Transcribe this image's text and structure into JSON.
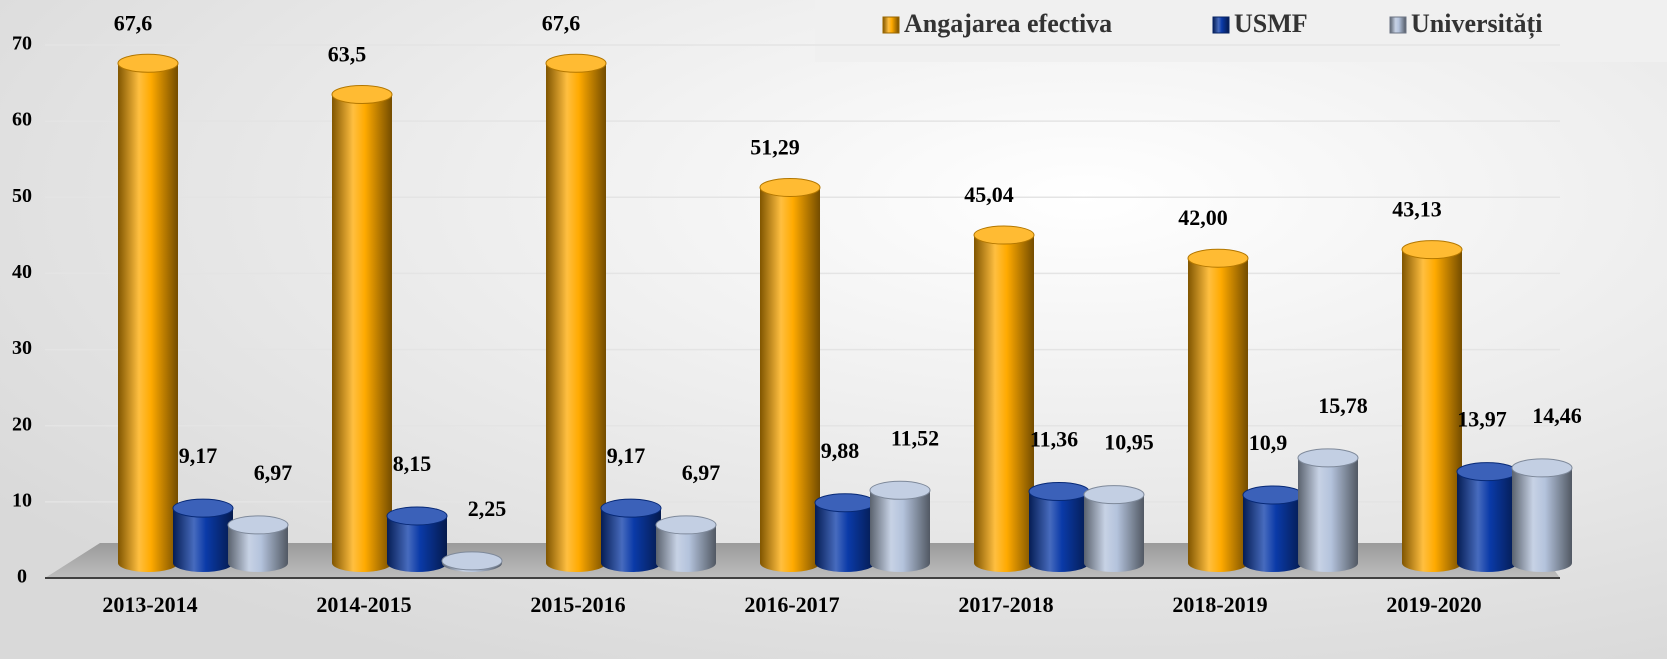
{
  "chart_data": {
    "type": "bar",
    "categories": [
      "2013-2014",
      "2014-2015",
      "2015-2016",
      "2016-2017",
      "2017-2018",
      "2018-2019",
      "2019-2020"
    ],
    "series": [
      {
        "name": "Angajarea efectiva",
        "color": "#ffaa00",
        "values": [
          67.6,
          63.5,
          67.6,
          51.29,
          45.04,
          42.0,
          43.13
        ],
        "value_labels": [
          "67,6",
          "63,5",
          "67,6",
          "51,29",
          "45,04",
          "42,00",
          "43,13"
        ]
      },
      {
        "name": "USMF",
        "color": "#0a3aa8",
        "values": [
          9.17,
          8.15,
          9.17,
          9.88,
          11.36,
          10.9,
          13.97
        ],
        "value_labels": [
          "9,17",
          "8,15",
          "9,17",
          "9,88",
          "11,36",
          "10,9",
          "13,97"
        ]
      },
      {
        "name": "Universități",
        "color": "#b4c3dc",
        "values": [
          6.97,
          2.25,
          6.97,
          11.52,
          10.95,
          15.78,
          14.46
        ],
        "value_labels": [
          "6,97",
          "2,25",
          "6,97",
          "11,52",
          "10,95",
          "15,78",
          "14,46"
        ]
      }
    ],
    "ylim": [
      0,
      70
    ],
    "yticks": [
      0,
      10,
      20,
      30,
      40,
      50,
      60,
      70
    ],
    "grid": true,
    "legend": "top-right"
  }
}
